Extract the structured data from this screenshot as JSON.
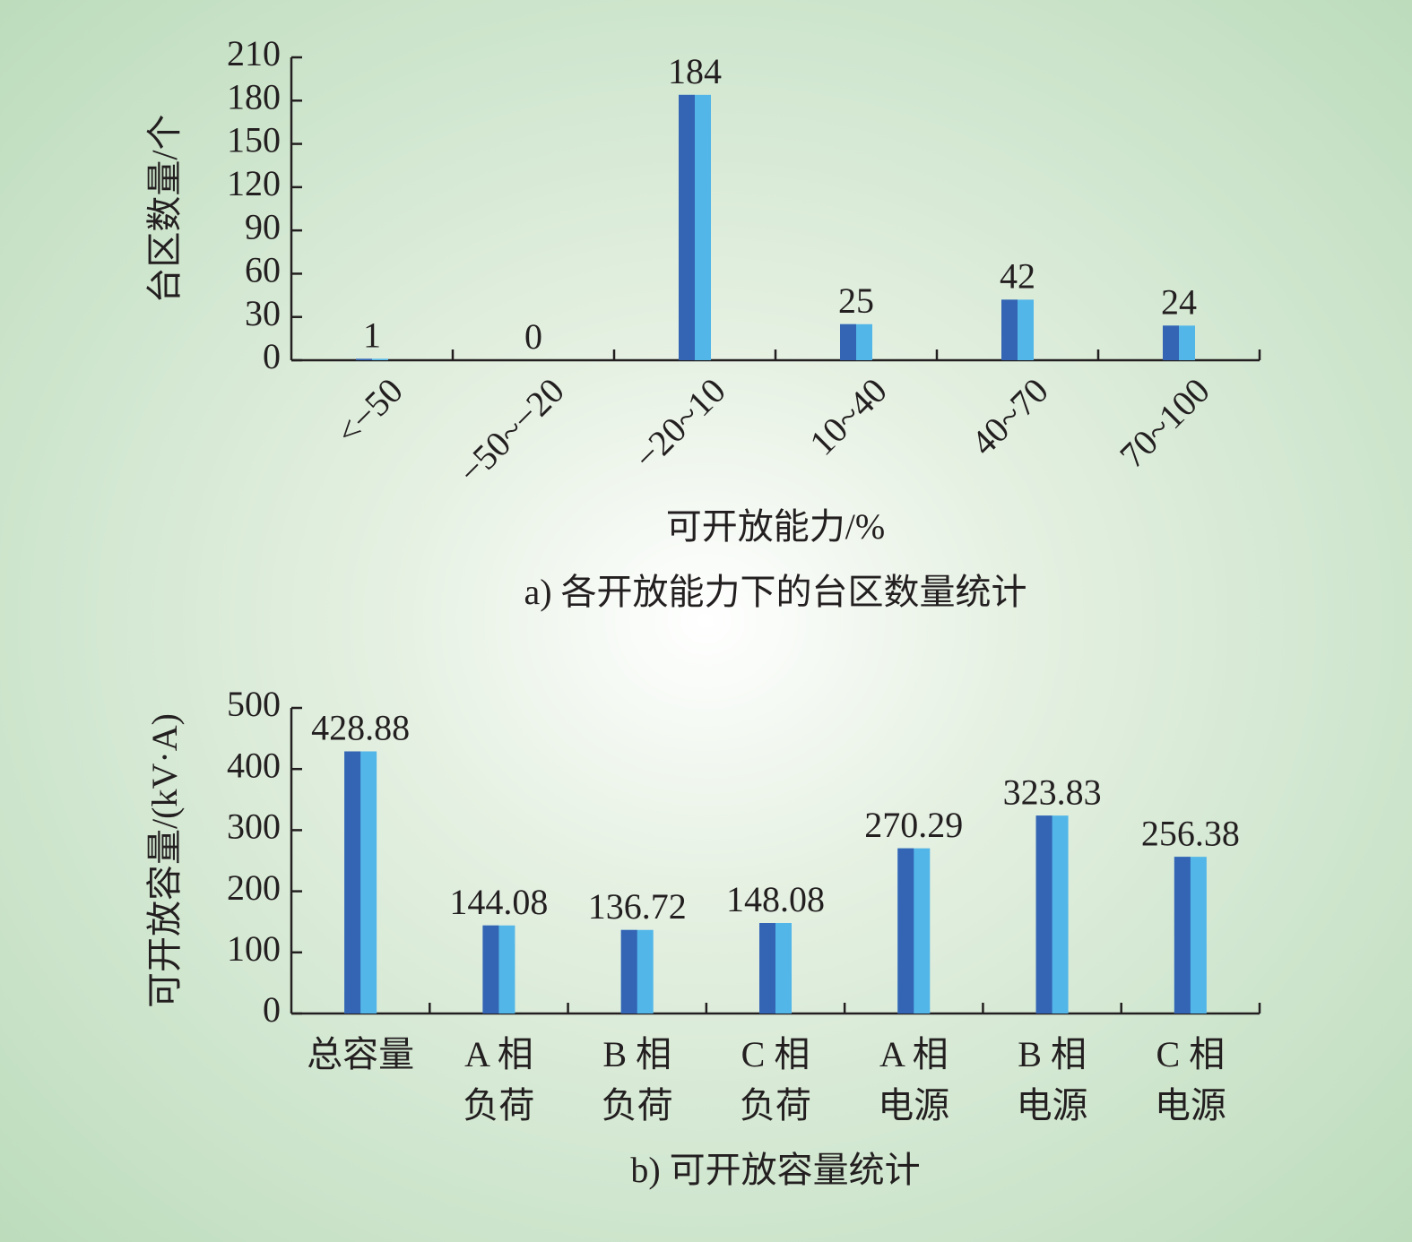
{
  "chart_data": [
    {
      "type": "bar",
      "y_label": "台区数量/个",
      "x_label": "可开放能力/%",
      "caption": "a) 各开放能力下的台区数量统计",
      "categories": [
        "<−50",
        "−50~−20",
        "−20~10",
        "10~40",
        "40~70",
        "70~100"
      ],
      "values": [
        1,
        0,
        184,
        25,
        42,
        24
      ],
      "colors": [
        "#3464b4",
        "#52b6e8"
      ],
      "ylim": [
        0,
        210
      ],
      "yticks": [
        0,
        30,
        60,
        90,
        120,
        150,
        180,
        210
      ],
      "rotate_labels": true
    },
    {
      "type": "bar",
      "y_label": "可开放容量/(kV·A)",
      "caption": "b) 可开放容量统计",
      "categories": [
        "总容量",
        "A 相\n负荷",
        "B 相\n负荷",
        "C 相\n负荷",
        "A 相\n电源",
        "B 相\n电源",
        "C 相\n电源"
      ],
      "values": [
        428.88,
        144.08,
        136.72,
        148.08,
        270.29,
        323.83,
        256.38
      ],
      "colors": [
        "#3464b4",
        "#52b6e8"
      ],
      "ylim": [
        0,
        500
      ],
      "yticks": [
        0,
        100,
        200,
        300,
        400,
        500
      ],
      "rotate_labels": false
    }
  ]
}
